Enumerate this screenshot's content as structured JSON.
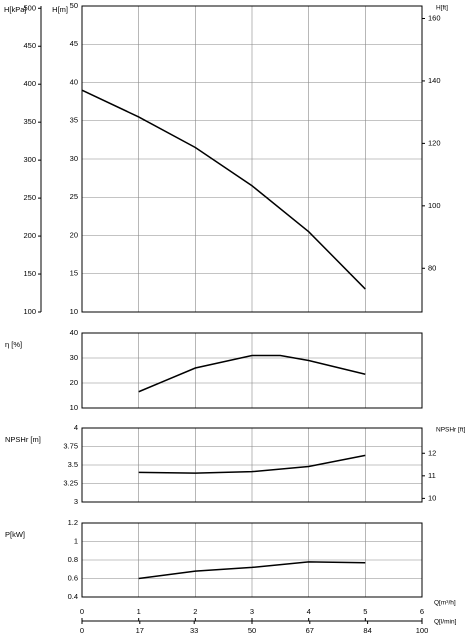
{
  "chart_data": [
    {
      "type": "line",
      "ylabel": "H[m]",
      "x": [
        0,
        1,
        2,
        3,
        4,
        5
      ],
      "values": [
        39,
        35.5,
        31.5,
        26.5,
        20.5,
        13
      ],
      "color": "#000000",
      "xlim": [
        0,
        6
      ],
      "xticks": [
        0,
        1,
        2,
        3,
        4,
        5,
        6
      ],
      "ylim": [
        10,
        50
      ],
      "yticks": [
        10,
        15,
        20,
        25,
        30,
        35,
        40,
        45,
        50
      ],
      "y2label": "H[ft]",
      "y2lim": [
        66,
        164
      ],
      "y2ticks": [
        80,
        100,
        120,
        140,
        160
      ],
      "y3label": "H[kPa]",
      "y3lim": [
        100,
        503
      ],
      "y3ticks": [
        100,
        150,
        200,
        250,
        300,
        350,
        400,
        450,
        500
      ],
      "grid": true
    },
    {
      "type": "line",
      "ylabel": "η [%]",
      "x": [
        1,
        2,
        3,
        3.5,
        4,
        5
      ],
      "values": [
        16.5,
        26,
        31,
        31,
        29,
        23.5
      ],
      "color": "#000000",
      "xlim": [
        0,
        6
      ],
      "xticks": [
        0,
        1,
        2,
        3,
        4,
        5,
        6
      ],
      "ylim": [
        10,
        40
      ],
      "yticks": [
        10,
        20,
        30,
        40
      ],
      "grid": true
    },
    {
      "type": "line",
      "ylabel": "NPSHr [m]",
      "x": [
        1,
        2,
        3,
        4,
        5
      ],
      "values": [
        3.4,
        3.39,
        3.41,
        3.48,
        3.63
      ],
      "color": "#000000",
      "xlim": [
        0,
        6
      ],
      "xticks": [
        0,
        1,
        2,
        3,
        4,
        5,
        6
      ],
      "ylim": [
        3,
        4
      ],
      "yticks": [
        3,
        3.25,
        3.5,
        3.75,
        4
      ],
      "y2label": "NPSHr [ft]",
      "y2lim": [
        9.84,
        13.12
      ],
      "y2ticks": [
        10,
        11,
        12
      ],
      "grid": true
    },
    {
      "type": "line",
      "ylabel": "P[kW]",
      "x": [
        1,
        2,
        3,
        4,
        5
      ],
      "values": [
        0.6,
        0.68,
        0.72,
        0.78,
        0.77
      ],
      "color": "#000000",
      "xlim": [
        0,
        6
      ],
      "xticks": [
        0,
        1,
        2,
        3,
        4,
        5,
        6
      ],
      "ylim": [
        0.4,
        1.2
      ],
      "yticks": [
        0.4,
        0.6,
        0.8,
        1,
        1.2
      ],
      "xlabel": "Q[m³/h]",
      "x2label": "Q[l/min]",
      "x2lim": [
        0,
        100
      ],
      "x2ticks": [
        0,
        17,
        33,
        50,
        67,
        84,
        100
      ],
      "grid": true
    }
  ]
}
